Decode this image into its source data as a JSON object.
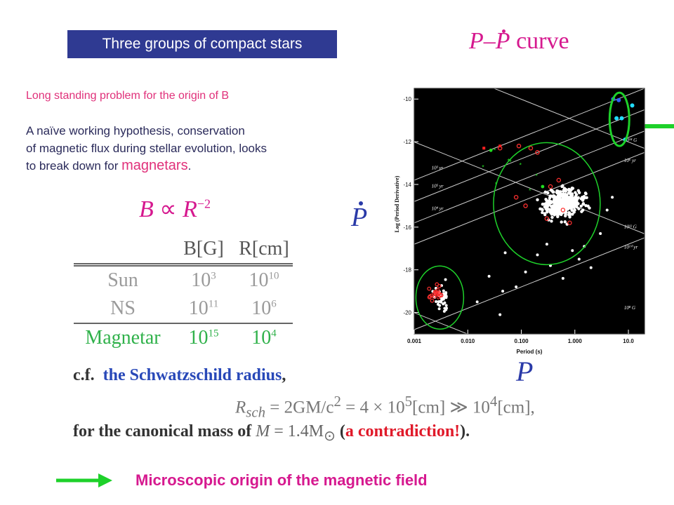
{
  "slide": {
    "title_box": "Three groups of compact stars",
    "curve_title": {
      "p": "P",
      "dash": "–",
      "pdot": "P",
      "word": "curve"
    },
    "problem_text": "Long standing problem for the origin of B",
    "hypothesis": {
      "line1": "A naïve working hypothesis, conservation",
      "line2": "of magnetic flux during stellar evolution, looks",
      "line3_pre": "to break down for ",
      "line3_mag": "magnetars",
      "line3_post": "."
    },
    "formula": {
      "b": "B",
      "prop": "∝",
      "r": "R",
      "exp": "−2"
    },
    "axis_symbols": {
      "pdot": "P",
      "p": "P"
    },
    "table": {
      "headers": {
        "name": "",
        "b": "B[G]",
        "r": "R[cm]"
      },
      "rows": [
        {
          "name": "Sun",
          "b_base": "10",
          "b_exp": "3",
          "r_base": "10",
          "r_exp": "10"
        },
        {
          "name": "NS",
          "b_base": "10",
          "b_exp": "11",
          "r_base": "10",
          "r_exp": "6"
        },
        {
          "name": "Magnetar",
          "b_base": "10",
          "b_exp": "15",
          "r_base": "10",
          "r_exp": "4"
        }
      ]
    },
    "cf": {
      "prefix": "c.f.",
      "highlight": "the Schwatzschild radius",
      "suffix": ",",
      "rsch_lhs": "R",
      "rsch_sub": "sch",
      "rsch_mid": " = 2GM/c",
      "rsch_sq": "2",
      "rsch_val": " = 4 × 10",
      "rsch_exp1": "5",
      "rsch_cm1": "[cm] ≫ 10",
      "rsch_exp2": "4",
      "rsch_cm2": "[cm],",
      "mass_pre": "for the canonical mass of ",
      "mass_m": "M",
      "mass_eq": " = 1.4M",
      "mass_sun": "⊙",
      "mass_open": " (",
      "mass_red": "a contradiction!",
      "mass_close": ")."
    },
    "bottom_text": "Microscopic origin of the magnetic field",
    "colors": {
      "magenta": "#d6198f",
      "title_bg": "#2f3a92",
      "green": "#1ed12a",
      "blue": "#2a3aa8"
    }
  },
  "chart_data": {
    "type": "scatter",
    "xlabel": "Period (s)",
    "ylabel": "Log (Period Derivative)",
    "xscale": "log",
    "xlim": [
      0.001,
      20
    ],
    "ylim": [
      -21,
      -9.5
    ],
    "xticks": [
      "0.001",
      "0.010",
      "0.100",
      "1.000",
      "10.0"
    ],
    "yticks": [
      "-10",
      "-12",
      "-14",
      "-16",
      "-18",
      "-20"
    ],
    "background": "#000000",
    "line_labels": {
      "age": [
        "10³ yr",
        "10⁴ yr",
        "10⁵ yr",
        "10⁶ yr",
        "10¹⁰ yr"
      ],
      "field": [
        "10¹⁴ G",
        "10¹² G",
        "10⁸ G"
      ]
    },
    "groups": [
      {
        "name": "",
        "color": "#ffffff",
        "marker": "dot"
      },
      {
        "name": "",
        "color": "#ff3030",
        "marker": "ring"
      },
      {
        "name": "",
        "color": "#22dd22",
        "marker": "star"
      },
      {
        "name": "",
        "color": "#3060ff",
        "marker": "dot"
      },
      {
        "name": "",
        "color": "#22ddff",
        "marker": "dot"
      }
    ],
    "magnetars": [
      {
        "p": 5.2,
        "logpdot": -10.0,
        "color": "#3060ff"
      },
      {
        "p": 6.6,
        "logpdot": -10.05,
        "color": "#3060ff"
      },
      {
        "p": 11.8,
        "logpdot": -10.3,
        "color": "#22ddff"
      },
      {
        "p": 7.5,
        "logpdot": -10.9,
        "color": "#22ddff"
      },
      {
        "p": 6.0,
        "logpdot": -10.9,
        "color": "#22ddff"
      },
      {
        "p": 8.7,
        "logpdot": -11.9,
        "color": "#22ddff"
      }
    ],
    "circles": [
      {
        "group": "magnetars",
        "color": "#1ed12a"
      },
      {
        "group": "normal pulsars",
        "color": "#1ed12a"
      },
      {
        "group": "millisecond pulsars",
        "color": "#1ed12a"
      }
    ]
  }
}
